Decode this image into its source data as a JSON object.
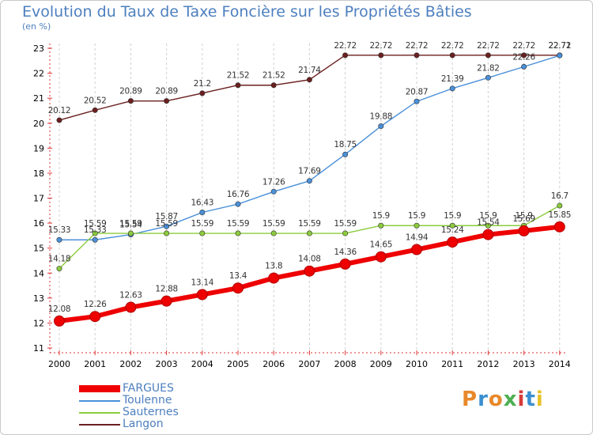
{
  "page": {
    "title": "Evolution du Taux de Taxe Foncière sur les Propriétés Bâties",
    "subtitle": "(en %)"
  },
  "logo": {
    "text": "Proxiti",
    "colors": [
      "#e8882a",
      "#3b8fd0",
      "#e8882a",
      "#4caf50",
      "#d93a3a",
      "#3b8fd0",
      "#e8c22a"
    ]
  },
  "chart_data": {
    "type": "line",
    "title": "Evolution du Taux de Taxe Foncière sur les Propriétés Bâties",
    "xlabel": "",
    "ylabel": "(en %)",
    "ylim": [
      11,
      23
    ],
    "yticks": [
      "11",
      "12",
      "13",
      "14",
      "15",
      "16",
      "17",
      "18",
      "19",
      "20",
      "21",
      "22",
      "23"
    ],
    "categories": [
      "2000",
      "2001",
      "2002",
      "2003",
      "2004",
      "2005",
      "2006",
      "2007",
      "2008",
      "2009",
      "2010",
      "2011",
      "2012",
      "2013",
      "2014"
    ],
    "grid": "vertical dashed",
    "legend_position": "bottom-left",
    "series": [
      {
        "name": "Langon",
        "color": "#6b1f1f",
        "values": [
          20.12,
          20.52,
          20.89,
          20.89,
          21.2,
          21.52,
          21.52,
          21.74,
          22.72,
          22.72,
          22.72,
          22.72,
          22.72,
          22.72,
          22.72
        ],
        "labels": [
          "20.12",
          "20.52",
          "20.89",
          "20.89",
          "21.2",
          "21.52",
          "21.52",
          "21.74",
          "22.72",
          "22.72",
          "22.72",
          "22.72",
          "22.72",
          "22.72",
          "22.72"
        ]
      },
      {
        "name": "Toulenne",
        "color": "#4a90d9",
        "values": [
          15.33,
          15.33,
          15.54,
          15.87,
          16.43,
          16.76,
          17.26,
          17.69,
          18.75,
          19.88,
          20.87,
          21.39,
          21.82,
          22.26,
          22.71
        ],
        "labels": [
          "15.33",
          "15.33",
          "15.54",
          "15.87",
          "16.43",
          "16.76",
          "17.26",
          "17.69",
          "18.75",
          "19.88",
          "20.87",
          "21.39",
          "21.82",
          "22.26",
          "22.71"
        ]
      },
      {
        "name": "Sauternes",
        "color": "#8ccc3c",
        "values": [
          14.18,
          15.59,
          15.59,
          15.59,
          15.59,
          15.59,
          15.59,
          15.59,
          15.59,
          15.9,
          15.9,
          15.9,
          15.9,
          15.9,
          16.7
        ],
        "labels": [
          "14.18",
          "15.59",
          "15.59",
          "15.59",
          "15.59",
          "15.59",
          "15.59",
          "15.59",
          "15.59",
          "15.9",
          "15.9",
          "15.9",
          "15.9",
          "15.9",
          "16.7"
        ]
      },
      {
        "name": "FARGUES",
        "color": "#ee0000",
        "values": [
          12.08,
          12.26,
          12.63,
          12.88,
          13.14,
          13.4,
          13.8,
          14.08,
          14.36,
          14.65,
          14.94,
          15.24,
          15.54,
          15.69,
          15.85
        ],
        "labels": [
          "12.08",
          "12.26",
          "12.63",
          "12.88",
          "13.14",
          "13.4",
          "13.8",
          "14.08",
          "14.36",
          "14.65",
          "14.94",
          "15.24",
          "15.54",
          "15.69",
          "15.85"
        ]
      }
    ],
    "legend": [
      "FARGUES",
      "Toulenne",
      "Sauternes",
      "Langon"
    ]
  }
}
